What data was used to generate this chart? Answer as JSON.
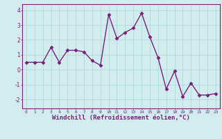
{
  "x": [
    0,
    1,
    2,
    3,
    4,
    5,
    6,
    7,
    8,
    9,
    10,
    11,
    12,
    13,
    14,
    15,
    16,
    17,
    18,
    19,
    20,
    21,
    22,
    23
  ],
  "y": [
    0.5,
    0.5,
    0.5,
    1.5,
    0.5,
    1.3,
    1.3,
    1.2,
    0.6,
    0.3,
    3.7,
    2.1,
    2.5,
    2.8,
    3.8,
    2.2,
    0.8,
    -1.3,
    -0.1,
    -1.8,
    -0.9,
    -1.7,
    -1.7,
    -1.6
  ],
  "line_color": "#7B1F7B",
  "marker": "D",
  "marker_size": 2.5,
  "linewidth": 1.0,
  "bg_color": "#d0ecec",
  "grid_color": "#b0d8d8",
  "xlabel": "Windchill (Refroidissement éolien,°C)",
  "xlabel_fontsize": 6.5,
  "ylabel_ticks": [
    -2,
    -1,
    0,
    1,
    2,
    3,
    4
  ],
  "xtick_labels": [
    "0",
    "1",
    "2",
    "3",
    "4",
    "5",
    "6",
    "7",
    "8",
    "9",
    "10",
    "11",
    "12",
    "13",
    "14",
    "15",
    "16",
    "17",
    "18",
    "19",
    "20",
    "21",
    "22",
    "23"
  ],
  "ylim": [
    -2.6,
    4.4
  ],
  "xlim": [
    -0.5,
    23.5
  ],
  "spine_color": "#7B1F7B",
  "tick_color": "#7B1F7B",
  "label_color": "#7B1F7B"
}
